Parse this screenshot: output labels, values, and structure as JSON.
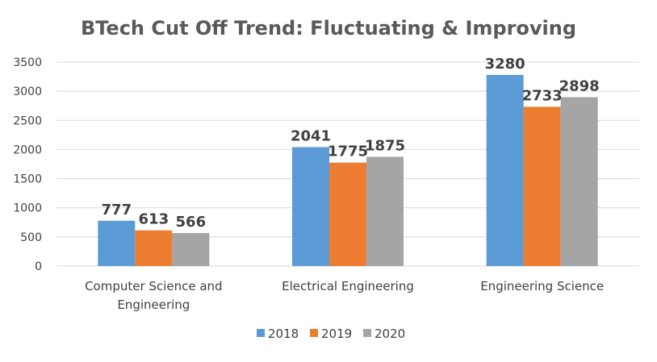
{
  "chart_data": {
    "type": "bar",
    "title": "BTech Cut Off Trend: Fluctuating & Improving",
    "categories": [
      [
        "Computer Science and",
        "Engineering"
      ],
      [
        "Electrical Engineering"
      ],
      [
        "Engineering Science"
      ]
    ],
    "series": [
      {
        "name": "2018",
        "values": [
          777,
          2041,
          3280
        ],
        "color": "#5b9bd5"
      },
      {
        "name": "2019",
        "values": [
          613,
          1775,
          2733
        ],
        "color": "#ed7d31"
      },
      {
        "name": "2020",
        "values": [
          566,
          1875,
          2898
        ],
        "color": "#a5a5a5"
      }
    ],
    "ylim": [
      0,
      3500
    ],
    "yticks": [
      0,
      500,
      1000,
      1500,
      2000,
      2500,
      3000,
      3500
    ],
    "grid": true,
    "legend": "bottom-center",
    "xlabel": "",
    "ylabel": ""
  }
}
